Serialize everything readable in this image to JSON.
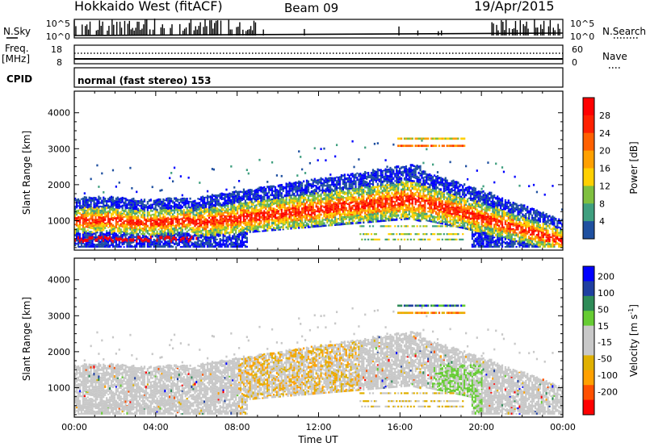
{
  "header": {
    "station": "Hokkaido West (fitACF)",
    "beam": "Beam 09",
    "date": "19/Apr/2015"
  },
  "noise_panel": {
    "left_label": "N.Sky",
    "right_label": "N.Search",
    "tick_top": "10^5",
    "tick_bottom": "10^0"
  },
  "freq_panel": {
    "left_label_1": "Freq.",
    "left_label_2": "[MHz]",
    "right_label": "Nave",
    "tick_left_top": "18",
    "tick_left_bottom": "8",
    "tick_right_top": "60",
    "tick_right_bottom": "0"
  },
  "cpid": {
    "label": "CPID",
    "value": "normal (fast stereo) 153"
  },
  "colors": {
    "power_scale": [
      "#0000ff",
      "#1f50a0",
      "#3f9f7f",
      "#7fc03f",
      "#ffd000",
      "#ffa000",
      "#ff6000",
      "#ff2000",
      "#ff0000"
    ],
    "velocity_scale": [
      "#ff0000",
      "#ff5000",
      "#ffa000",
      "#e0b000",
      "#c8c8c8",
      "#c8c8c8",
      "#66cc33",
      "#2e8b57",
      "#1f3fa0",
      "#0000ff"
    ]
  },
  "chart_data": [
    {
      "type": "heatmap",
      "name": "power",
      "ylabel": "Slant Range [km]",
      "ylim": [
        180,
        4600
      ],
      "yticks": [
        "1000",
        "2000",
        "3000",
        "4000"
      ],
      "xlim": [
        0,
        24
      ],
      "colorbar": {
        "label": "Power [dB]",
        "ticks": [
          "4",
          "8",
          "12",
          "16",
          "20",
          "24",
          "28"
        ],
        "range": [
          0,
          32
        ]
      }
    },
    {
      "type": "heatmap",
      "name": "velocity",
      "ylabel": "Slant Range [km]",
      "ylim": [
        180,
        4600
      ],
      "yticks": [
        "1000",
        "2000",
        "3000",
        "4000"
      ],
      "xlim": [
        0,
        24
      ],
      "xlabel": "Time UT",
      "xticks": [
        "00:00",
        "04:00",
        "08:00",
        "12:00",
        "16:00",
        "20:00",
        "00:00"
      ],
      "colorbar": {
        "label": "Velocity [m s^-1]",
        "ticks": [
          "-200",
          "-100",
          "-50",
          "-15",
          "15",
          "50",
          "100",
          "200"
        ]
      }
    }
  ]
}
